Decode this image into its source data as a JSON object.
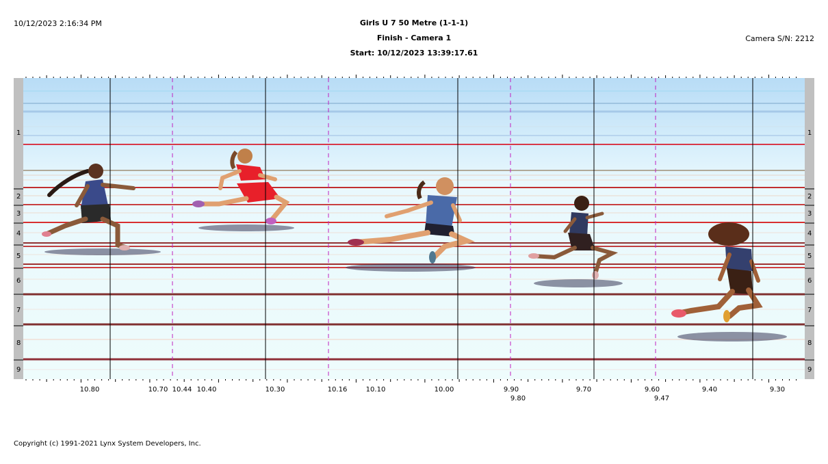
{
  "header": {
    "datetime": "10/12/2023 2:16:34 PM",
    "title": "Girls U 7 50 Metre (1-1-1)",
    "subtitle": "Finish - Camera 1",
    "start": "Start: 10/12/2023 13:39:17.61",
    "camera_sn": "Camera S/N: 2212"
  },
  "lanes": [
    "1",
    "2",
    "3",
    "4",
    "5",
    "6",
    "7",
    "8",
    "9"
  ],
  "time_axis": {
    "ticks": [
      "10.80",
      "10.70",
      "10.44",
      "10.40",
      "10.30",
      "10.16",
      "10.10",
      "10.00",
      "9.90",
      "9.80",
      "9.70",
      "9.60",
      "9.47",
      "9.40",
      "9.30"
    ]
  },
  "runners": [
    {
      "name": "runner-1",
      "jersey": "#3a4a8a",
      "shorts": "#2a2a2a"
    },
    {
      "name": "runner-2",
      "jersey": "#e8202a",
      "shorts": "#e8202a"
    },
    {
      "name": "runner-3",
      "jersey": "#4a6aa8",
      "shorts": "#202030"
    },
    {
      "name": "runner-4",
      "jersey": "#303a60",
      "shorts": "#302020"
    },
    {
      "name": "runner-5",
      "jersey": "#34406e",
      "shorts": "#3a2014"
    }
  ],
  "footer": {
    "copyright": "Copyright (c) 1991-2021 Lynx System Developers, Inc."
  }
}
